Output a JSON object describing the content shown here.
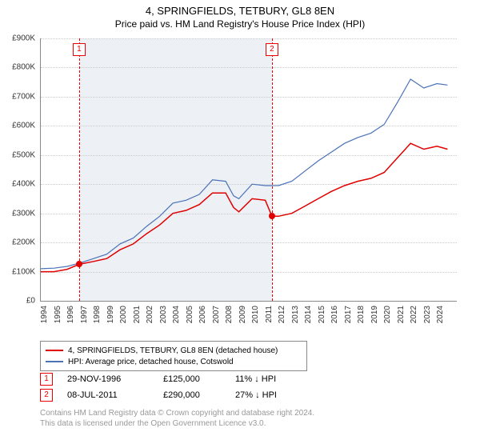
{
  "title": "4, SPRINGFIELDS, TETBURY, GL8 8EN",
  "subtitle": "Price paid vs. HM Land Registry's House Price Index (HPI)",
  "chart": {
    "type": "line",
    "background_color": "#ffffff",
    "grid_color": "#cccccc",
    "x": {
      "min": 1994,
      "max": 2025.5,
      "ticks": [
        1994,
        1995,
        1996,
        1997,
        1998,
        1999,
        2000,
        2001,
        2002,
        2003,
        2004,
        2005,
        2006,
        2007,
        2008,
        2009,
        2010,
        2011,
        2012,
        2013,
        2014,
        2015,
        2016,
        2017,
        2018,
        2019,
        2020,
        2021,
        2022,
        2023,
        2024
      ]
    },
    "y": {
      "min": 0,
      "max": 900,
      "ticks": [
        0,
        100,
        200,
        300,
        400,
        500,
        600,
        700,
        800,
        900
      ],
      "tick_labels": [
        "£0",
        "£100K",
        "£200K",
        "£300K",
        "£400K",
        "£500K",
        "£600K",
        "£700K",
        "£800K",
        "£900K"
      ]
    },
    "shade_band": {
      "from": 1996.9,
      "to": 2011.5,
      "color": "#edf0f5"
    },
    "series": [
      {
        "name": "4, SPRINGFIELDS, TETBURY, GL8 8EN (detached house)",
        "color": "#e00000",
        "width": 1.5,
        "points": [
          [
            1994,
            100
          ],
          [
            1995,
            100
          ],
          [
            1996,
            108
          ],
          [
            1996.9,
            125
          ],
          [
            1998,
            135
          ],
          [
            1999,
            145
          ],
          [
            2000,
            175
          ],
          [
            2001,
            195
          ],
          [
            2002,
            230
          ],
          [
            2003,
            260
          ],
          [
            2004,
            300
          ],
          [
            2005,
            310
          ],
          [
            2006,
            330
          ],
          [
            2007,
            370
          ],
          [
            2008,
            370
          ],
          [
            2008.6,
            320
          ],
          [
            2009,
            305
          ],
          [
            2010,
            350
          ],
          [
            2011,
            345
          ],
          [
            2011.5,
            290
          ],
          [
            2012,
            290
          ],
          [
            2013,
            300
          ],
          [
            2014,
            325
          ],
          [
            2015,
            350
          ],
          [
            2016,
            375
          ],
          [
            2017,
            395
          ],
          [
            2018,
            410
          ],
          [
            2019,
            420
          ],
          [
            2020,
            440
          ],
          [
            2021,
            490
          ],
          [
            2022,
            540
          ],
          [
            2023,
            520
          ],
          [
            2024,
            530
          ],
          [
            2024.8,
            520
          ]
        ]
      },
      {
        "name": "HPI: Average price, detached house, Cotswold",
        "color": "#4a72b8",
        "width": 1.2,
        "points": [
          [
            1994,
            110
          ],
          [
            1995,
            112
          ],
          [
            1996,
            118
          ],
          [
            1997,
            130
          ],
          [
            1998,
            145
          ],
          [
            1999,
            160
          ],
          [
            2000,
            195
          ],
          [
            2001,
            215
          ],
          [
            2002,
            255
          ],
          [
            2003,
            290
          ],
          [
            2004,
            335
          ],
          [
            2005,
            345
          ],
          [
            2006,
            365
          ],
          [
            2007,
            415
          ],
          [
            2008,
            410
          ],
          [
            2008.6,
            360
          ],
          [
            2009,
            350
          ],
          [
            2010,
            400
          ],
          [
            2011,
            395
          ],
          [
            2012,
            395
          ],
          [
            2013,
            410
          ],
          [
            2014,
            445
          ],
          [
            2015,
            480
          ],
          [
            2016,
            510
          ],
          [
            2017,
            540
          ],
          [
            2018,
            560
          ],
          [
            2019,
            575
          ],
          [
            2020,
            605
          ],
          [
            2021,
            680
          ],
          [
            2022,
            760
          ],
          [
            2023,
            730
          ],
          [
            2024,
            745
          ],
          [
            2024.8,
            740
          ]
        ]
      }
    ],
    "sale_points": [
      {
        "x": 1996.9,
        "y": 125,
        "color": "#e00000"
      },
      {
        "x": 2011.5,
        "y": 290,
        "color": "#e00000"
      }
    ],
    "markers": [
      {
        "id": "1",
        "x": 1996.9
      },
      {
        "id": "2",
        "x": 2011.5
      }
    ]
  },
  "legend": {
    "items": [
      {
        "color": "#e00000",
        "label": "4, SPRINGFIELDS, TETBURY, GL8 8EN (detached house)"
      },
      {
        "color": "#4a72b8",
        "label": "HPI: Average price, detached house, Cotswold"
      }
    ]
  },
  "events": [
    {
      "id": "1",
      "date": "29-NOV-1996",
      "price": "£125,000",
      "rel": "11% ↓ HPI"
    },
    {
      "id": "2",
      "date": "08-JUL-2011",
      "price": "£290,000",
      "rel": "27% ↓ HPI"
    }
  ],
  "footnote1": "Contains HM Land Registry data © Crown copyright and database right 2024.",
  "footnote2": "This data is licensed under the Open Government Licence v3.0."
}
